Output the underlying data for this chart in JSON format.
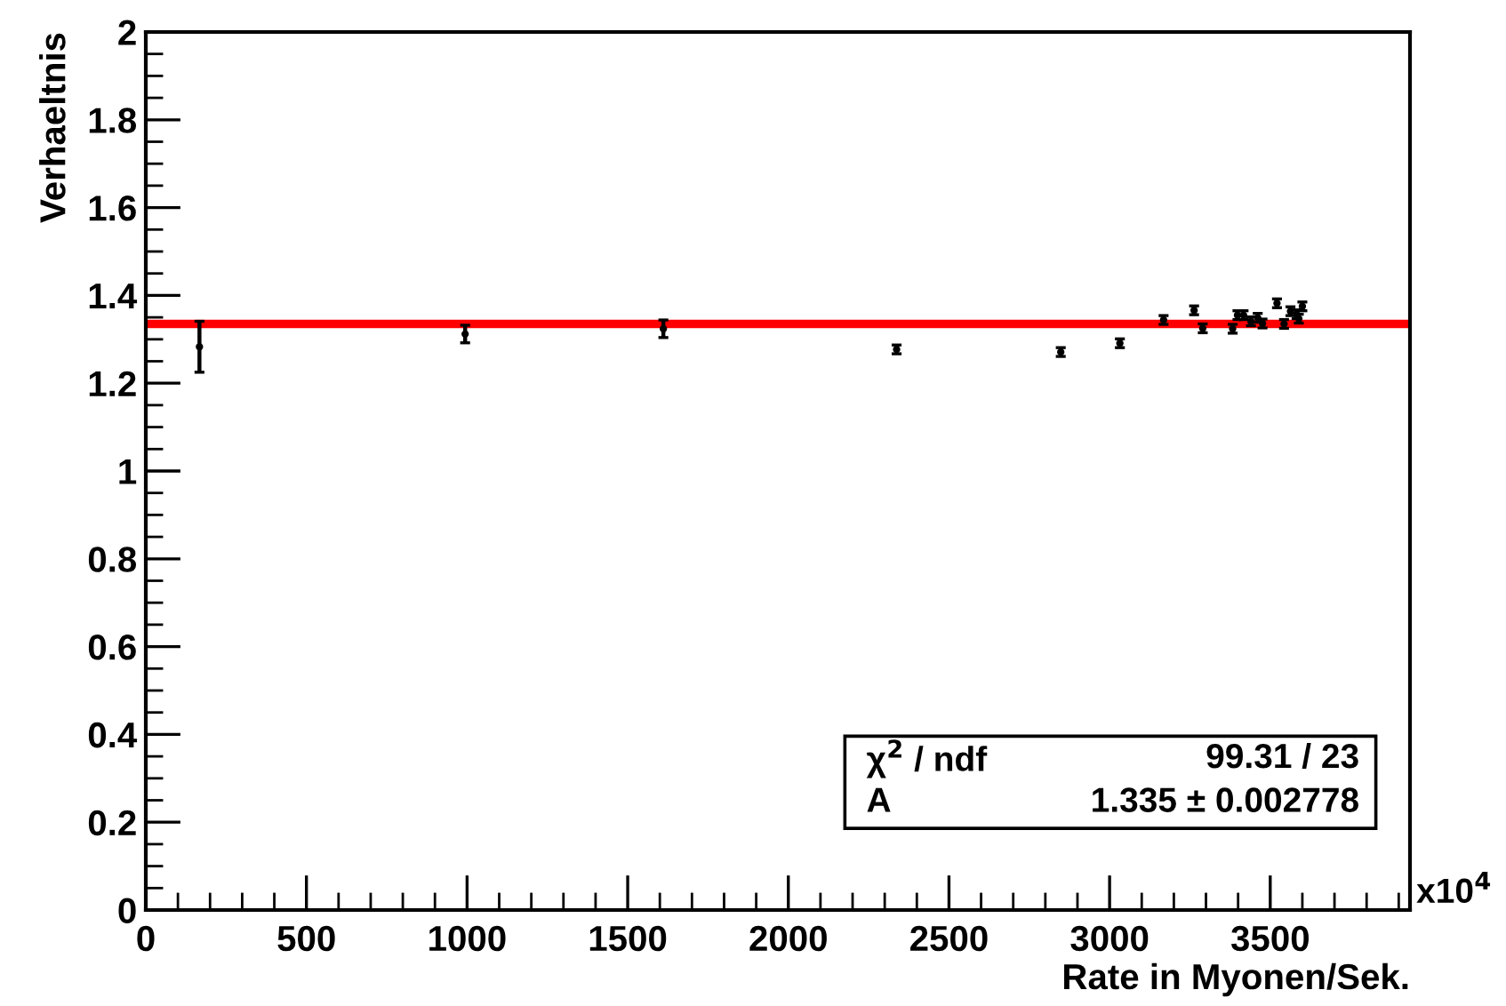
{
  "chart_data": {
    "type": "scatter",
    "xlabel": "Rate in Myonen/Sek.",
    "ylabel": "Verhaeltnis",
    "xlim": [
      0,
      3935
    ],
    "ylim": [
      0,
      2
    ],
    "xticks": [
      0,
      500,
      1000,
      1500,
      2000,
      2500,
      3000,
      3500
    ],
    "yticks": [
      0,
      0.2,
      0.4,
      0.6,
      0.8,
      1,
      1.2,
      1.4,
      1.6,
      1.8,
      2
    ],
    "grid": false,
    "legend": false,
    "series": [
      {
        "color": "#000000",
        "marker": "circle",
        "x": [
          167,
          994,
          1611,
          2337,
          2848,
          3032,
          3168,
          3263,
          3290,
          3383,
          3398,
          3417,
          3440,
          3461,
          3476,
          3521,
          3543,
          3563,
          3582,
          3589,
          3600
        ],
        "values": [
          1.283,
          1.312,
          1.324,
          1.277,
          1.271,
          1.291,
          1.344,
          1.366,
          1.325,
          1.324,
          1.355,
          1.355,
          1.341,
          1.349,
          1.336,
          1.382,
          1.335,
          1.364,
          1.357,
          1.347,
          1.375
        ],
        "errors": [
          0.058,
          0.02,
          0.02,
          0.01,
          0.01,
          0.01,
          0.01,
          0.01,
          0.01,
          0.01,
          0.01,
          0.01,
          0.01,
          0.01,
          0.01,
          0.01,
          0.01,
          0.01,
          0.01,
          0.01,
          0.01
        ]
      },
      {
        "type": "line",
        "color": "#ff0000",
        "marker": "none",
        "x": [
          10,
          3930
        ],
        "values": [
          1.335,
          1.335
        ]
      }
    ],
    "annotations": [
      "χ$^{2}$ / ndf",
      "99.31 / 23",
      "A",
      "1.335 ± 0.002778",
      "x10$^{4}$"
    ]
  }
}
